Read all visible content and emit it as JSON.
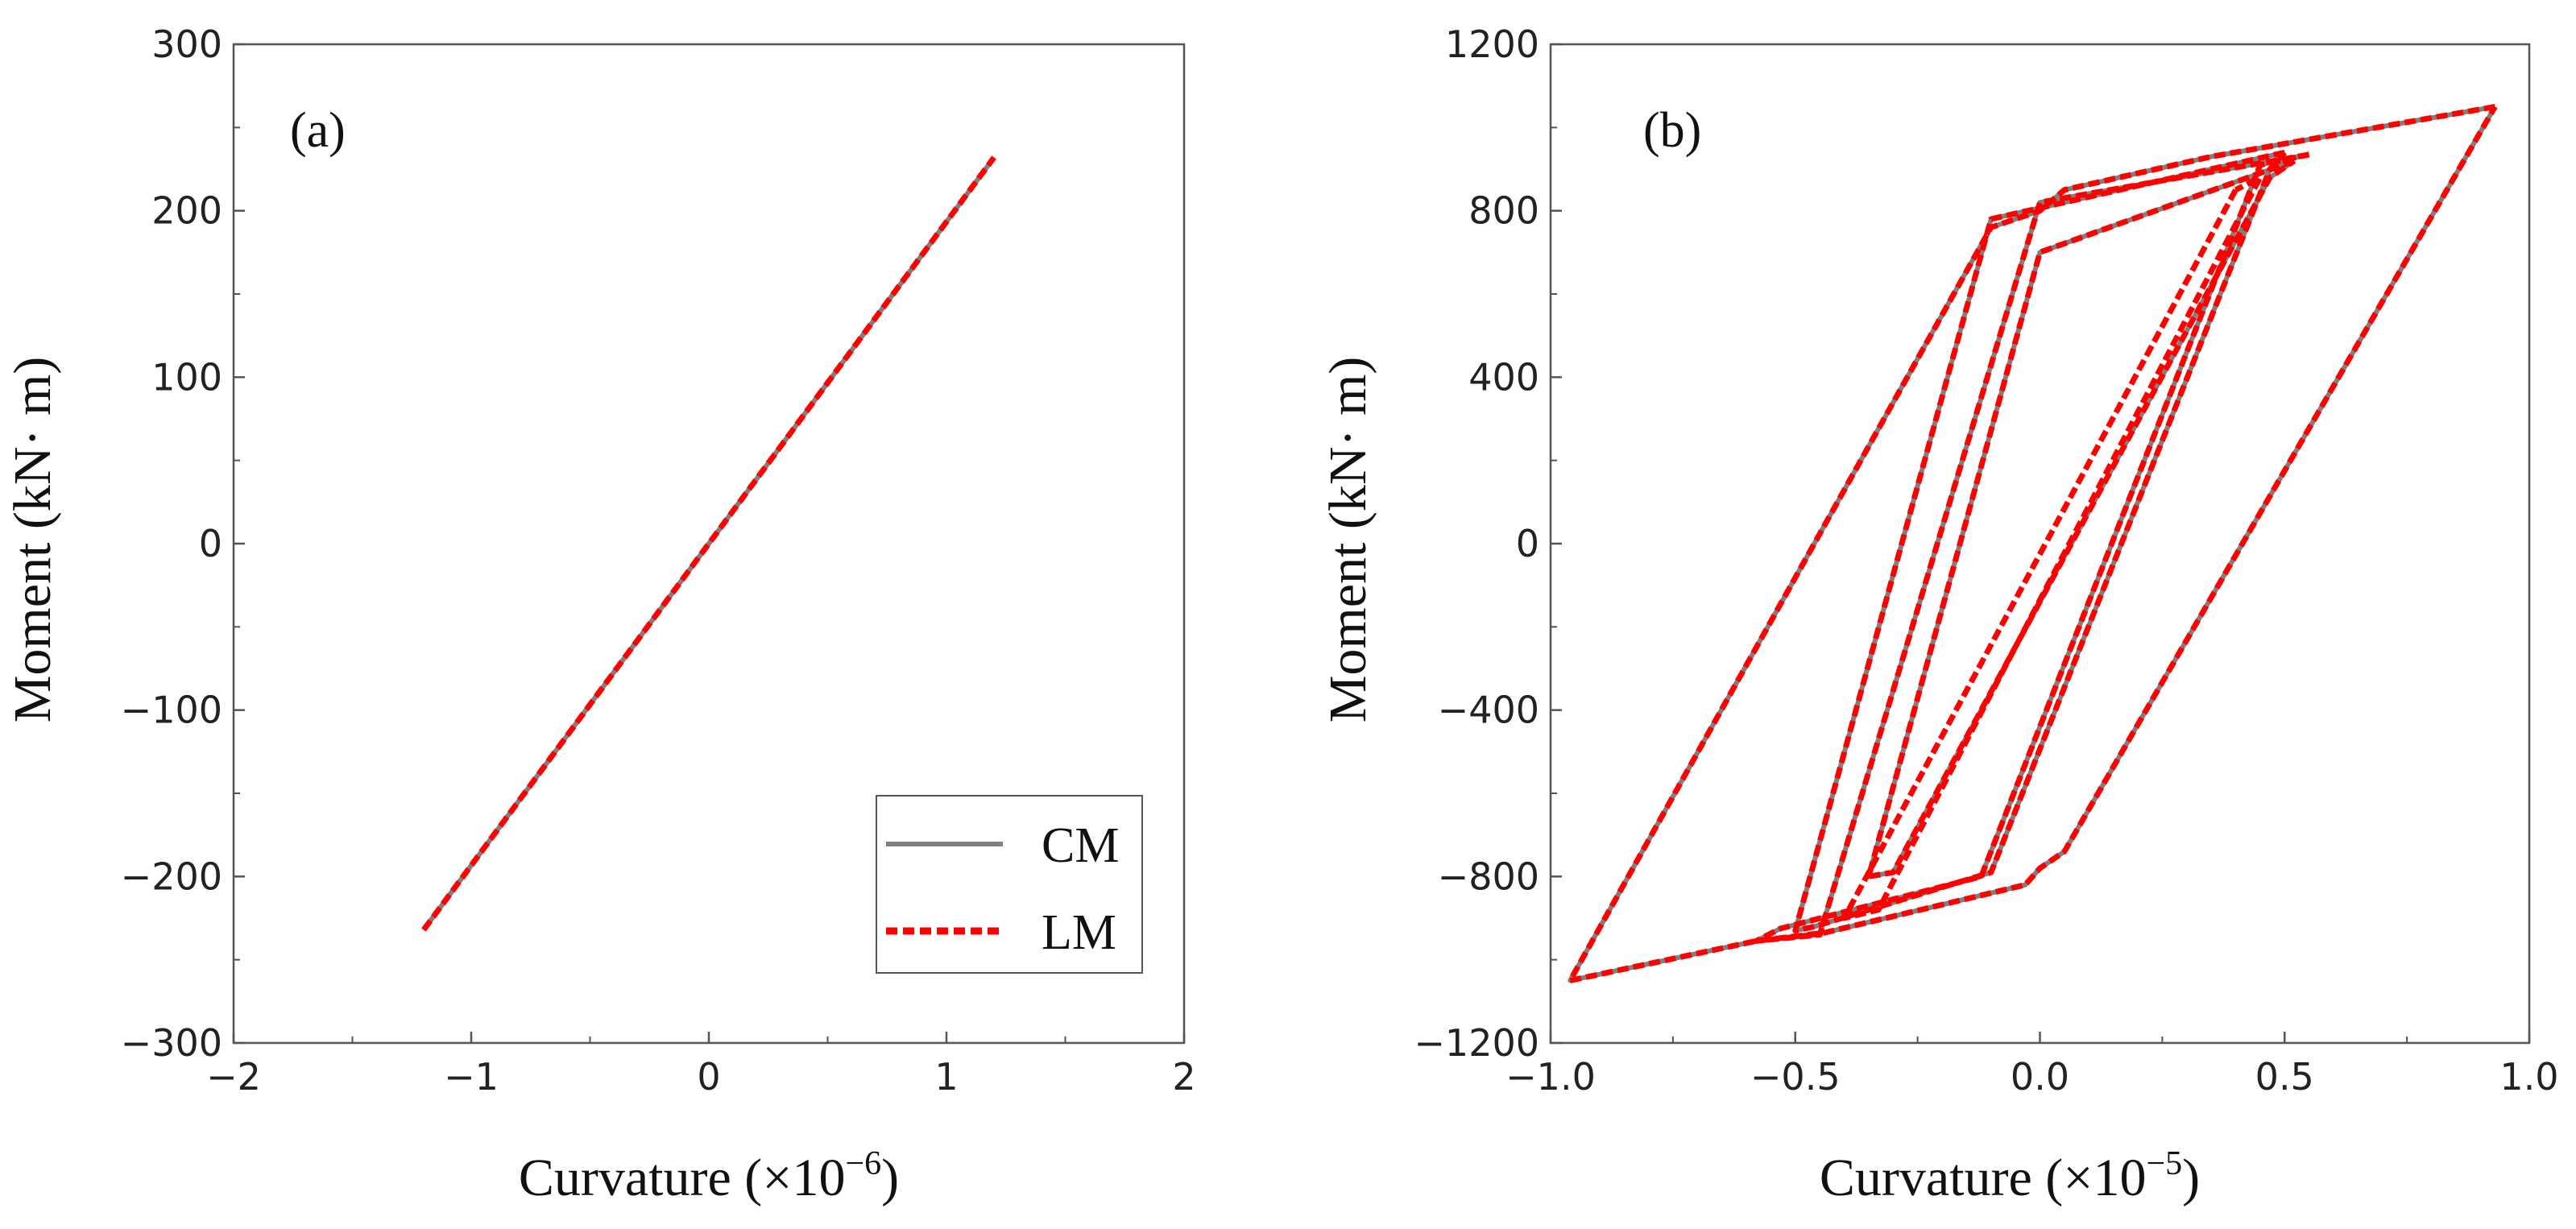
{
  "chart_data": [
    {
      "type": "line",
      "panel_label": "(a)",
      "xlabel": "Curvature (×10",
      "xlabel_exp": "−6",
      "xlabel_close": ")",
      "ylabel": "Moment (kN· m)",
      "xlim": [
        -2,
        2
      ],
      "ylim": [
        -300,
        300
      ],
      "xticks": [
        -2,
        -1,
        0,
        1,
        2
      ],
      "xtick_labels": [
        "−2",
        "−1",
        "0",
        "1",
        "2"
      ],
      "yticks": [
        -300,
        -200,
        -100,
        0,
        100,
        200,
        300
      ],
      "ytick_labels": [
        "−300",
        "−200",
        "−100",
        "0",
        "100",
        "200",
        "300"
      ],
      "legend": {
        "placement": "bottom-right",
        "entries": [
          "CM",
          "LM"
        ]
      },
      "series": [
        {
          "name": "CM",
          "x": [
            -1.2,
            1.2
          ],
          "y": [
            -232,
            232
          ]
        },
        {
          "name": "LM",
          "x": [
            -1.2,
            1.2
          ],
          "y": [
            -232,
            232
          ]
        }
      ]
    },
    {
      "type": "line",
      "panel_label": "(b)",
      "xlabel": "Curvature (×10",
      "xlabel_exp": "−5",
      "xlabel_close": ")",
      "ylabel": "Moment (kN· m)",
      "xlim": [
        -1.0,
        1.0
      ],
      "ylim": [
        -1200,
        1200
      ],
      "xticks": [
        -1.0,
        -0.5,
        0.0,
        0.5,
        1.0
      ],
      "xtick_labels": [
        "−1.0",
        "−0.5",
        "0.0",
        "0.5",
        "1.0"
      ],
      "yticks": [
        -1200,
        -800,
        -400,
        0,
        400,
        800,
        1200
      ],
      "ytick_labels": [
        "−1200",
        "−800",
        "−400",
        "0",
        "400",
        "800",
        "1200"
      ],
      "series": [
        {
          "name": "CM",
          "loops": [
            {
              "x": [
                0.93,
                0.35,
                0.05,
                0.0,
                -0.1,
                -0.96,
                -0.58,
                -0.44,
                -0.03,
                0.0,
                0.05,
                0.93
              ],
              "y": [
                1050,
                930,
                850,
                800,
                760,
                -1050,
                -955,
                -935,
                -820,
                -780,
                -740,
                1050
              ]
            },
            {
              "x": [
                0.55,
                0.0,
                -0.45,
                -0.58,
                -0.53,
                -0.12,
                0.45,
                0.55
              ],
              "y": [
                935,
                820,
                -940,
                -955,
                -925,
                -800,
                910,
                935
              ]
            },
            {
              "x": [
                0.5,
                -0.1,
                -0.5,
                -0.46,
                -0.1,
                0.47,
                0.5
              ],
              "y": [
                940,
                780,
                -930,
                -920,
                -790,
                900,
                940
              ]
            },
            {
              "x": [
                0.52,
                0.0,
                -0.35,
                -0.3,
                0.47,
                0.52
              ],
              "y": [
                920,
                700,
                -800,
                -790,
                880,
                920
              ]
            }
          ]
        },
        {
          "name": "LM",
          "loops": [
            {
              "x": [
                0.93,
                0.35,
                0.05,
                0.0,
                -0.1,
                -0.96,
                -0.58,
                -0.44,
                -0.03,
                0.0,
                0.05,
                0.93
              ],
              "y": [
                1050,
                930,
                850,
                800,
                760,
                -1050,
                -955,
                -935,
                -820,
                -780,
                -740,
                1050
              ]
            },
            {
              "x": [
                0.55,
                0.0,
                -0.45,
                -0.58,
                -0.53,
                -0.12,
                0.45,
                0.55
              ],
              "y": [
                935,
                820,
                -940,
                -955,
                -925,
                -800,
                910,
                935
              ]
            },
            {
              "x": [
                0.5,
                -0.1,
                -0.5,
                -0.46,
                -0.1,
                0.47,
                0.5
              ],
              "y": [
                940,
                780,
                -930,
                -920,
                -790,
                900,
                940
              ]
            },
            {
              "x": [
                0.52,
                0.0,
                -0.35,
                -0.3,
                0.47,
                0.52
              ],
              "y": [
                920,
                700,
                -800,
                -790,
                880,
                920
              ]
            },
            {
              "x": [
                0.4,
                -0.4,
                -0.33,
                0.45,
                0.4
              ],
              "y": [
                850,
                -900,
                -880,
                880,
                850
              ]
            }
          ]
        }
      ]
    }
  ],
  "colors": {
    "CM": "#7f7f7f",
    "LM": "#ff0000",
    "axis": "#555555"
  }
}
